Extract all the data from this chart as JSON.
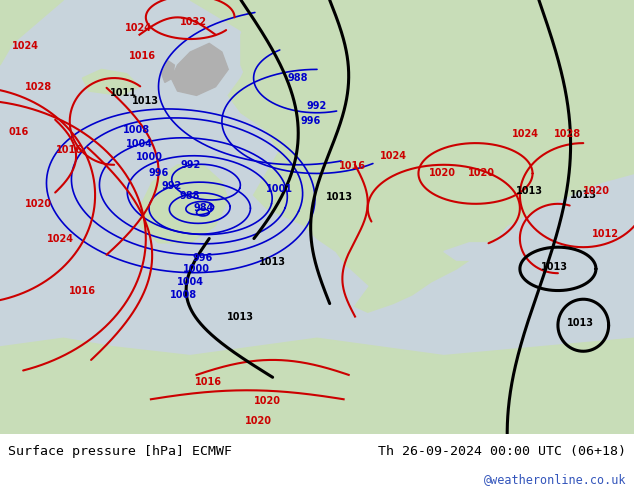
{
  "title_left": "Surface pressure [hPa] ECMWF",
  "title_right": "Th 26-09-2024 00:00 UTC (06+18)",
  "watermark": "@weatheronline.co.uk",
  "fig_width": 6.34,
  "fig_height": 4.9,
  "dpi": 100,
  "bottom_bar_color": "#ffffff",
  "sea_color": "#c8d4dc",
  "land_color": "#c8ddb8",
  "mountain_color": "#b8c8a8",
  "title_fontsize": 9.5,
  "watermark_color": "#3355bb",
  "text_color": "#000000",
  "blue_color": "#0000cc",
  "red_color": "#cc0000",
  "black_color": "#000000",
  "label_fontsize": 7.0
}
